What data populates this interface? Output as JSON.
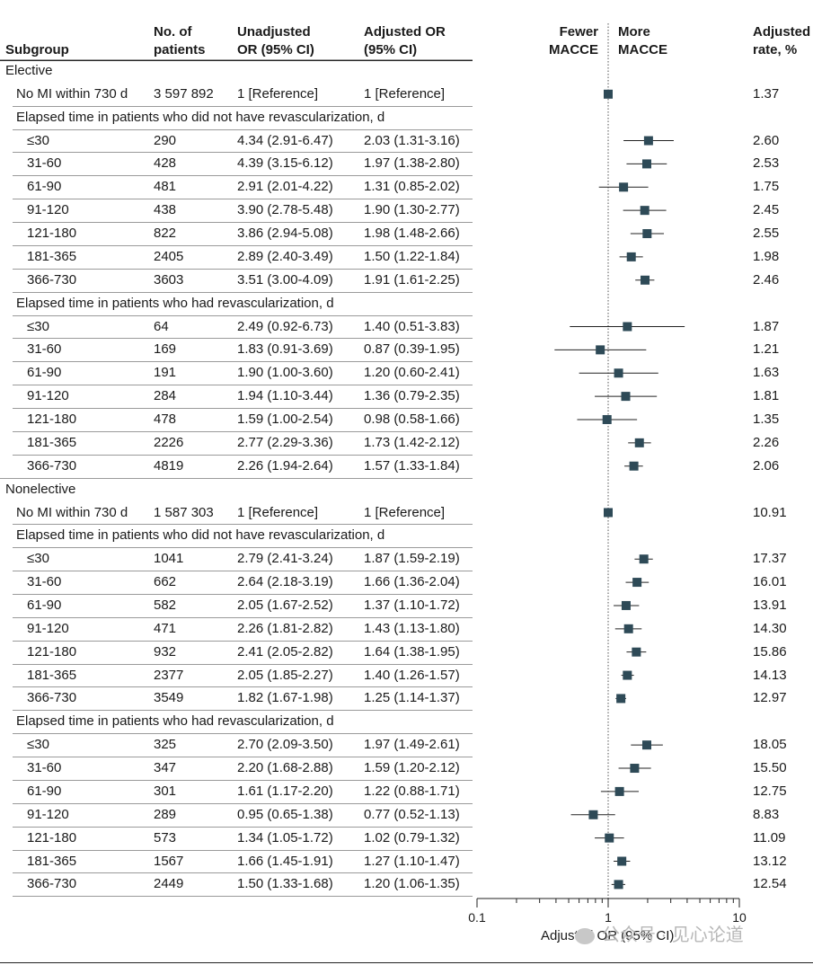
{
  "headers": {
    "subgroup": "Subgroup",
    "patients_line1": "No. of",
    "patients_line2": "patients",
    "unadj_line1": "Unadjusted",
    "unadj_line2": "OR (95% CI)",
    "adj_line1": "Adjusted OR",
    "adj_line2": "(95% CI)",
    "fewer_line1": "Fewer",
    "fewer_line2": "MACCE",
    "more_line1": "More",
    "more_line2": "MACCE",
    "rate_line1": "Adjusted",
    "rate_line2": "rate, %"
  },
  "chart_data": {
    "type": "forest",
    "xscale": "log",
    "xlim": [
      0.1,
      10
    ],
    "reference_line": 1,
    "xlabel": "Adjusted OR (95% CI)",
    "xticks": [
      "0.1",
      "1",
      "10"
    ],
    "rows": [
      {
        "kind": "group",
        "label": "Elective"
      },
      {
        "kind": "ref",
        "label": "No MI within 730 d",
        "n": "3 597 892",
        "unadj": "1 [Reference]",
        "adj": "1 [Reference]",
        "or": 1,
        "lo": 1,
        "hi": 1,
        "rate": "1.37"
      },
      {
        "kind": "subhead",
        "label": "Elapsed time in patients who did not have revascularization, d"
      },
      {
        "kind": "data",
        "label": "≤30",
        "n": "290",
        "unadj": "4.34 (2.91-6.47)",
        "adj": "2.03 (1.31-3.16)",
        "or": 2.03,
        "lo": 1.31,
        "hi": 3.16,
        "rate": "2.60"
      },
      {
        "kind": "data",
        "label": "31-60",
        "n": "428",
        "unadj": "4.39 (3.15-6.12)",
        "adj": "1.97 (1.38-2.80)",
        "or": 1.97,
        "lo": 1.38,
        "hi": 2.8,
        "rate": "2.53"
      },
      {
        "kind": "data",
        "label": "61-90",
        "n": "481",
        "unadj": "2.91 (2.01-4.22)",
        "adj": "1.31 (0.85-2.02)",
        "or": 1.31,
        "lo": 0.85,
        "hi": 2.02,
        "rate": "1.75"
      },
      {
        "kind": "data",
        "label": "91-120",
        "n": "438",
        "unadj": "3.90 (2.78-5.48)",
        "adj": "1.90 (1.30-2.77)",
        "or": 1.9,
        "lo": 1.3,
        "hi": 2.77,
        "rate": "2.45"
      },
      {
        "kind": "data",
        "label": "121-180",
        "n": "822",
        "unadj": "3.86 (2.94-5.08)",
        "adj": "1.98 (1.48-2.66)",
        "or": 1.98,
        "lo": 1.48,
        "hi": 2.66,
        "rate": "2.55"
      },
      {
        "kind": "data",
        "label": "181-365",
        "n": "2405",
        "unadj": "2.89 (2.40-3.49)",
        "adj": "1.50 (1.22-1.84)",
        "or": 1.5,
        "lo": 1.22,
        "hi": 1.84,
        "rate": "1.98"
      },
      {
        "kind": "data",
        "label": "366-730",
        "n": "3603",
        "unadj": "3.51 (3.00-4.09)",
        "adj": "1.91 (1.61-2.25)",
        "or": 1.91,
        "lo": 1.61,
        "hi": 2.25,
        "rate": "2.46"
      },
      {
        "kind": "subhead",
        "label": "Elapsed time in patients who had revascularization, d"
      },
      {
        "kind": "data",
        "label": "≤30",
        "n": "64",
        "unadj": "2.49 (0.92-6.73)",
        "adj": "1.40 (0.51-3.83)",
        "or": 1.4,
        "lo": 0.51,
        "hi": 3.83,
        "rate": "1.87"
      },
      {
        "kind": "data",
        "label": "31-60",
        "n": "169",
        "unadj": "1.83 (0.91-3.69)",
        "adj": "0.87 (0.39-1.95)",
        "or": 0.87,
        "lo": 0.39,
        "hi": 1.95,
        "rate": "1.21"
      },
      {
        "kind": "data",
        "label": "61-90",
        "n": "191",
        "unadj": "1.90 (1.00-3.60)",
        "adj": "1.20 (0.60-2.41)",
        "or": 1.2,
        "lo": 0.6,
        "hi": 2.41,
        "rate": "1.63"
      },
      {
        "kind": "data",
        "label": "91-120",
        "n": "284",
        "unadj": "1.94 (1.10-3.44)",
        "adj": "1.36 (0.79-2.35)",
        "or": 1.36,
        "lo": 0.79,
        "hi": 2.35,
        "rate": "1.81"
      },
      {
        "kind": "data",
        "label": "121-180",
        "n": "478",
        "unadj": "1.59 (1.00-2.54)",
        "adj": "0.98 (0.58-1.66)",
        "or": 0.98,
        "lo": 0.58,
        "hi": 1.66,
        "rate": "1.35"
      },
      {
        "kind": "data",
        "label": "181-365",
        "n": "2226",
        "unadj": "2.77 (2.29-3.36)",
        "adj": "1.73 (1.42-2.12)",
        "or": 1.73,
        "lo": 1.42,
        "hi": 2.12,
        "rate": "2.26"
      },
      {
        "kind": "data",
        "label": "366-730",
        "n": "4819",
        "unadj": "2.26 (1.94-2.64)",
        "adj": "1.57 (1.33-1.84)",
        "or": 1.57,
        "lo": 1.33,
        "hi": 1.84,
        "rate": "2.06"
      },
      {
        "kind": "group",
        "label": "Nonelective"
      },
      {
        "kind": "ref",
        "label": "No MI within 730 d",
        "n": "1 587 303",
        "unadj": "1 [Reference]",
        "adj": "1 [Reference]",
        "or": 1,
        "lo": 1,
        "hi": 1,
        "rate": "10.91"
      },
      {
        "kind": "subhead",
        "label": "Elapsed time in patients who did not have revascularization, d"
      },
      {
        "kind": "data",
        "label": "≤30",
        "n": "1041",
        "unadj": "2.79 (2.41-3.24)",
        "adj": "1.87 (1.59-2.19)",
        "or": 1.87,
        "lo": 1.59,
        "hi": 2.19,
        "rate": "17.37"
      },
      {
        "kind": "data",
        "label": "31-60",
        "n": "662",
        "unadj": "2.64 (2.18-3.19)",
        "adj": "1.66 (1.36-2.04)",
        "or": 1.66,
        "lo": 1.36,
        "hi": 2.04,
        "rate": "16.01"
      },
      {
        "kind": "data",
        "label": "61-90",
        "n": "582",
        "unadj": "2.05 (1.67-2.52)",
        "adj": "1.37 (1.10-1.72)",
        "or": 1.37,
        "lo": 1.1,
        "hi": 1.72,
        "rate": "13.91"
      },
      {
        "kind": "data",
        "label": "91-120",
        "n": "471",
        "unadj": "2.26 (1.81-2.82)",
        "adj": "1.43 (1.13-1.80)",
        "or": 1.43,
        "lo": 1.13,
        "hi": 1.8,
        "rate": "14.30"
      },
      {
        "kind": "data",
        "label": "121-180",
        "n": "932",
        "unadj": "2.41 (2.05-2.82)",
        "adj": "1.64 (1.38-1.95)",
        "or": 1.64,
        "lo": 1.38,
        "hi": 1.95,
        "rate": "15.86"
      },
      {
        "kind": "data",
        "label": "181-365",
        "n": "2377",
        "unadj": "2.05 (1.85-2.27)",
        "adj": "1.40 (1.26-1.57)",
        "or": 1.4,
        "lo": 1.26,
        "hi": 1.57,
        "rate": "14.13"
      },
      {
        "kind": "data",
        "label": "366-730",
        "n": "3549",
        "unadj": "1.82 (1.67-1.98)",
        "adj": "1.25 (1.14-1.37)",
        "or": 1.25,
        "lo": 1.14,
        "hi": 1.37,
        "rate": "12.97"
      },
      {
        "kind": "subhead",
        "label": "Elapsed time in patients who had revascularization, d"
      },
      {
        "kind": "data",
        "label": "≤30",
        "n": "325",
        "unadj": "2.70 (2.09-3.50)",
        "adj": "1.97 (1.49-2.61)",
        "or": 1.97,
        "lo": 1.49,
        "hi": 2.61,
        "rate": "18.05"
      },
      {
        "kind": "data",
        "label": "31-60",
        "n": "347",
        "unadj": "2.20 (1.68-2.88)",
        "adj": "1.59 (1.20-2.12)",
        "or": 1.59,
        "lo": 1.2,
        "hi": 2.12,
        "rate": "15.50"
      },
      {
        "kind": "data",
        "label": "61-90",
        "n": "301",
        "unadj": "1.61 (1.17-2.20)",
        "adj": "1.22 (0.88-1.71)",
        "or": 1.22,
        "lo": 0.88,
        "hi": 1.71,
        "rate": "12.75"
      },
      {
        "kind": "data",
        "label": "91-120",
        "n": "289",
        "unadj": "0.95 (0.65-1.38)",
        "adj": "0.77 (0.52-1.13)",
        "or": 0.77,
        "lo": 0.52,
        "hi": 1.13,
        "rate": "8.83"
      },
      {
        "kind": "data",
        "label": "121-180",
        "n": "573",
        "unadj": "1.34 (1.05-1.72)",
        "adj": "1.02 (0.79-1.32)",
        "or": 1.02,
        "lo": 0.79,
        "hi": 1.32,
        "rate": "11.09"
      },
      {
        "kind": "data",
        "label": "181-365",
        "n": "1567",
        "unadj": "1.66 (1.45-1.91)",
        "adj": "1.27 (1.10-1.47)",
        "or": 1.27,
        "lo": 1.1,
        "hi": 1.47,
        "rate": "13.12"
      },
      {
        "kind": "data",
        "label": "366-730",
        "n": "2449",
        "unadj": "1.50 (1.33-1.68)",
        "adj": "1.20 (1.06-1.35)",
        "or": 1.2,
        "lo": 1.06,
        "hi": 1.35,
        "rate": "12.54"
      }
    ]
  },
  "watermark": "公众号 · 见心论道",
  "colors": {
    "marker": "#2e4a57",
    "line": "#222222",
    "ref_line": "#555555"
  }
}
